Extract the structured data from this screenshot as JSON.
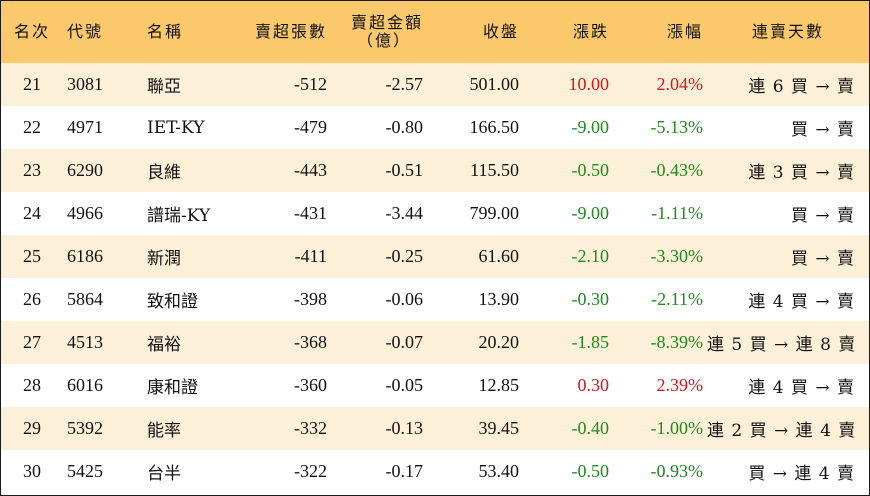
{
  "colors": {
    "header_bg": "#fbc96b",
    "alt_row_bg": "#fdf0d8",
    "up": "#e0151b",
    "down": "#1d8a1d"
  },
  "headers": {
    "rank": "名次",
    "code": "代號",
    "name": "名稱",
    "volume": "賣超張數",
    "amount_line1": "賣超金額",
    "amount_line2": "（億）",
    "close": "收盤",
    "change": "漲跌",
    "pct": "漲幅",
    "streak": "連賣天數"
  },
  "rows": [
    {
      "rank": "21",
      "code": "3081",
      "name": "聯亞",
      "volume": "-512",
      "amount": "-2.57",
      "close": "501.00",
      "change": "10.00",
      "pct": "2.04%",
      "dir": "up",
      "streak": "連 6 買 → 賣"
    },
    {
      "rank": "22",
      "code": "4971",
      "name": "IET-KY",
      "volume": "-479",
      "amount": "-0.80",
      "close": "166.50",
      "change": "-9.00",
      "pct": "-5.13%",
      "dir": "down",
      "streak": "買 → 賣"
    },
    {
      "rank": "23",
      "code": "6290",
      "name": "良維",
      "volume": "-443",
      "amount": "-0.51",
      "close": "115.50",
      "change": "-0.50",
      "pct": "-0.43%",
      "dir": "down",
      "streak": "連 3 買 → 賣"
    },
    {
      "rank": "24",
      "code": "4966",
      "name": "譜瑞-KY",
      "volume": "-431",
      "amount": "-3.44",
      "close": "799.00",
      "change": "-9.00",
      "pct": "-1.11%",
      "dir": "down",
      "streak": "買 → 賣"
    },
    {
      "rank": "25",
      "code": "6186",
      "name": "新潤",
      "volume": "-411",
      "amount": "-0.25",
      "close": "61.60",
      "change": "-2.10",
      "pct": "-3.30%",
      "dir": "down",
      "streak": "買 → 賣"
    },
    {
      "rank": "26",
      "code": "5864",
      "name": "致和證",
      "volume": "-398",
      "amount": "-0.06",
      "close": "13.90",
      "change": "-0.30",
      "pct": "-2.11%",
      "dir": "down",
      "streak": "連 4 買 → 賣"
    },
    {
      "rank": "27",
      "code": "4513",
      "name": "福裕",
      "volume": "-368",
      "amount": "-0.07",
      "close": "20.20",
      "change": "-1.85",
      "pct": "-8.39%",
      "dir": "down",
      "streak": "連 5 買 → 連 8 賣"
    },
    {
      "rank": "28",
      "code": "6016",
      "name": "康和證",
      "volume": "-360",
      "amount": "-0.05",
      "close": "12.85",
      "change": "0.30",
      "pct": "2.39%",
      "dir": "up",
      "streak": "連 4 買 → 賣"
    },
    {
      "rank": "29",
      "code": "5392",
      "name": "能率",
      "volume": "-332",
      "amount": "-0.13",
      "close": "39.45",
      "change": "-0.40",
      "pct": "-1.00%",
      "dir": "down",
      "streak": "連 2 買 → 連 4 賣"
    },
    {
      "rank": "30",
      "code": "5425",
      "name": "台半",
      "volume": "-322",
      "amount": "-0.17",
      "close": "53.40",
      "change": "-0.50",
      "pct": "-0.93%",
      "dir": "down",
      "streak": "買 → 連 4 賣"
    }
  ]
}
